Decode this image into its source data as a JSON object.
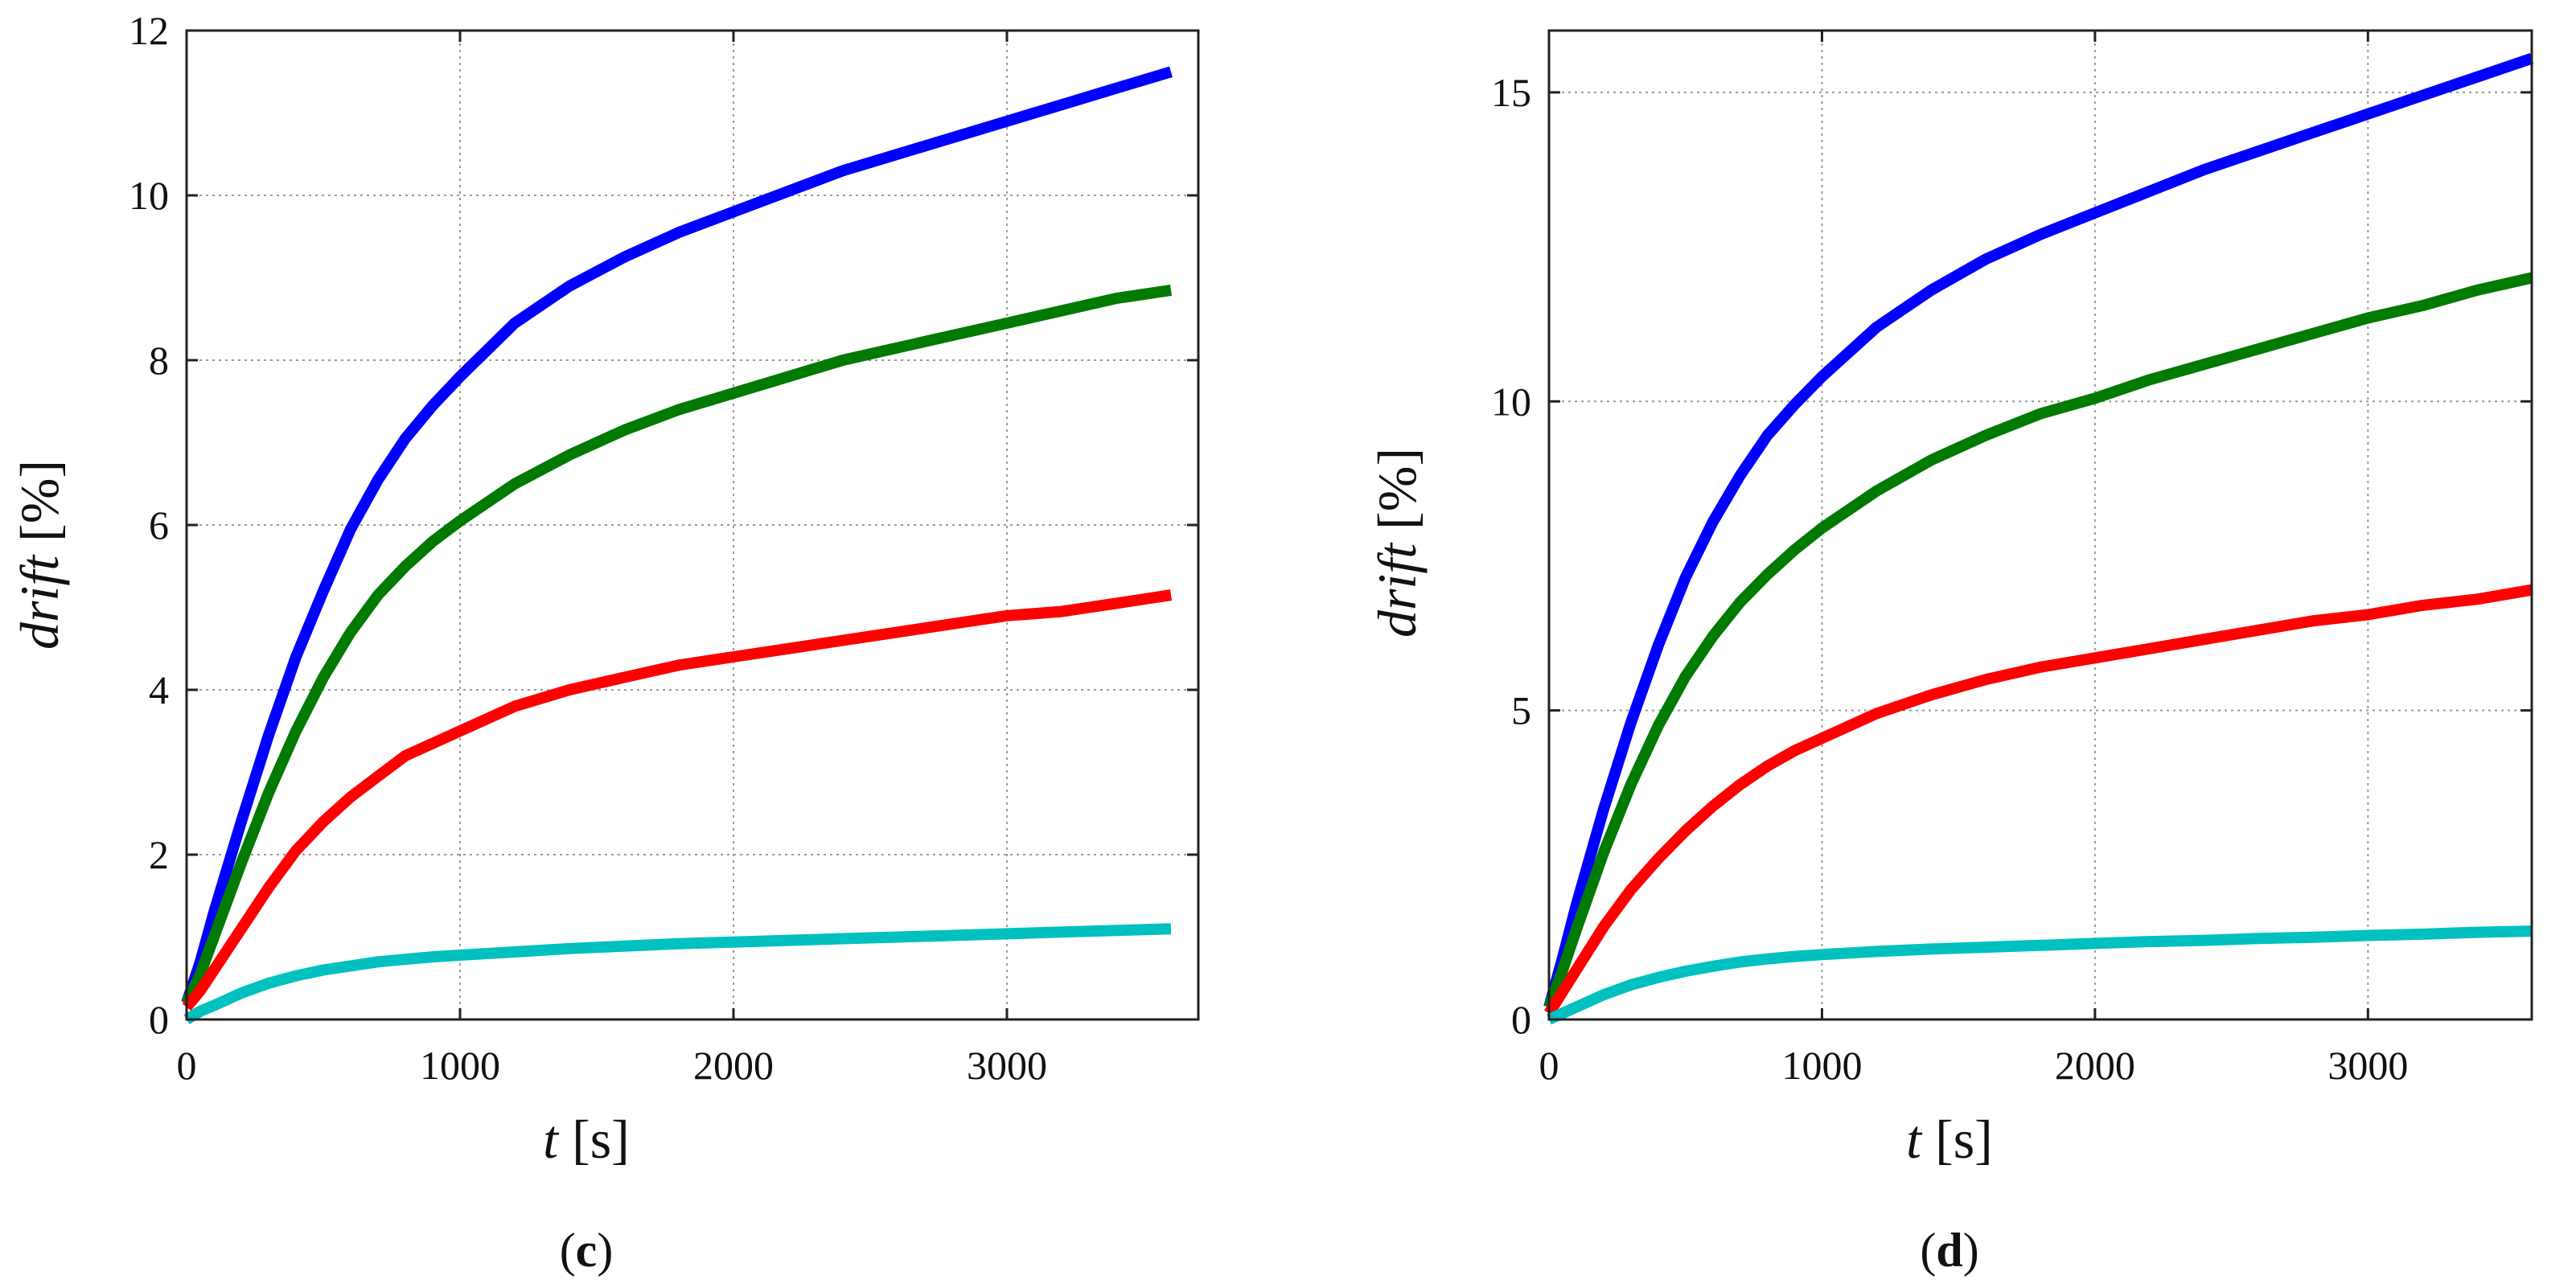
{
  "chart_data": [
    {
      "type": "line",
      "panel_label": "c",
      "xlabel": "t",
      "xunit": "[s]",
      "ylabel": "drift",
      "yunit": "[%]",
      "xlim": [
        0,
        3700
      ],
      "ylim": [
        0,
        12
      ],
      "xticks": [
        0,
        1000,
        2000,
        3000
      ],
      "yticks": [
        0,
        2,
        4,
        6,
        8,
        10,
        12
      ],
      "grid": true,
      "x": [
        0,
        50,
        100,
        200,
        300,
        400,
        500,
        600,
        700,
        800,
        900,
        1000,
        1200,
        1400,
        1600,
        1800,
        2000,
        2200,
        2400,
        2600,
        2800,
        3000,
        3200,
        3400,
        3600
      ],
      "series": [
        {
          "name": "blue",
          "color": "#0000ff",
          "values": [
            0.2,
            0.7,
            1.3,
            2.4,
            3.45,
            4.4,
            5.2,
            5.95,
            6.55,
            7.05,
            7.45,
            7.8,
            8.45,
            8.9,
            9.25,
            9.55,
            9.8,
            10.05,
            10.3,
            10.5,
            10.7,
            10.9,
            11.1,
            11.3,
            11.5
          ]
        },
        {
          "name": "green",
          "color": "#007a00",
          "values": [
            0.2,
            0.55,
            1.0,
            1.9,
            2.75,
            3.5,
            4.15,
            4.7,
            5.15,
            5.5,
            5.8,
            6.05,
            6.5,
            6.85,
            7.15,
            7.4,
            7.6,
            7.8,
            8.0,
            8.15,
            8.3,
            8.45,
            8.6,
            8.75,
            8.85
          ]
        },
        {
          "name": "red",
          "color": "#ff0000",
          "values": [
            0.15,
            0.35,
            0.6,
            1.1,
            1.6,
            2.05,
            2.4,
            2.7,
            2.95,
            3.2,
            3.35,
            3.5,
            3.8,
            4.0,
            4.15,
            4.3,
            4.4,
            4.5,
            4.6,
            4.7,
            4.8,
            4.9,
            4.95,
            5.05,
            5.15
          ]
        },
        {
          "name": "cyan",
          "color": "#00c0c0",
          "values": [
            0.0,
            0.1,
            0.17,
            0.32,
            0.44,
            0.53,
            0.6,
            0.65,
            0.7,
            0.73,
            0.76,
            0.78,
            0.82,
            0.86,
            0.89,
            0.92,
            0.94,
            0.96,
            0.98,
            1.0,
            1.02,
            1.04,
            1.06,
            1.08,
            1.1
          ]
        }
      ]
    },
    {
      "type": "line",
      "panel_label": "d",
      "xlabel": "t",
      "xunit": "[s]",
      "ylabel": "drift",
      "yunit": "[%]",
      "xlim": [
        0,
        3600
      ],
      "ylim": [
        0,
        16
      ],
      "xticks": [
        0,
        1000,
        2000,
        3000
      ],
      "yticks": [
        0,
        5,
        10,
        15
      ],
      "grid": true,
      "x": [
        0,
        50,
        100,
        200,
        300,
        400,
        500,
        600,
        700,
        800,
        900,
        1000,
        1200,
        1400,
        1600,
        1800,
        2000,
        2200,
        2400,
        2600,
        2800,
        3000,
        3200,
        3400,
        3600
      ],
      "series": [
        {
          "name": "blue",
          "color": "#0000ff",
          "values": [
            0.2,
            1.0,
            1.85,
            3.4,
            4.8,
            6.05,
            7.15,
            8.05,
            8.8,
            9.45,
            9.95,
            10.4,
            11.2,
            11.8,
            12.3,
            12.7,
            13.05,
            13.4,
            13.75,
            14.05,
            14.35,
            14.65,
            14.95,
            15.25,
            15.55
          ]
        },
        {
          "name": "green",
          "color": "#007a00",
          "values": [
            0.2,
            0.8,
            1.45,
            2.7,
            3.8,
            4.75,
            5.55,
            6.2,
            6.75,
            7.2,
            7.6,
            7.95,
            8.55,
            9.05,
            9.45,
            9.8,
            10.05,
            10.35,
            10.6,
            10.85,
            11.1,
            11.35,
            11.55,
            11.8,
            12.0
          ]
        },
        {
          "name": "red",
          "color": "#ff0000",
          "values": [
            0.1,
            0.45,
            0.8,
            1.5,
            2.1,
            2.6,
            3.05,
            3.45,
            3.8,
            4.1,
            4.35,
            4.55,
            4.95,
            5.25,
            5.5,
            5.7,
            5.85,
            6.0,
            6.15,
            6.3,
            6.45,
            6.55,
            6.7,
            6.8,
            6.95
          ]
        },
        {
          "name": "cyan",
          "color": "#00c0c0",
          "values": [
            0.0,
            0.1,
            0.2,
            0.4,
            0.56,
            0.68,
            0.78,
            0.86,
            0.93,
            0.98,
            1.02,
            1.05,
            1.1,
            1.14,
            1.17,
            1.2,
            1.23,
            1.26,
            1.28,
            1.31,
            1.33,
            1.36,
            1.38,
            1.41,
            1.43
          ]
        }
      ]
    }
  ]
}
